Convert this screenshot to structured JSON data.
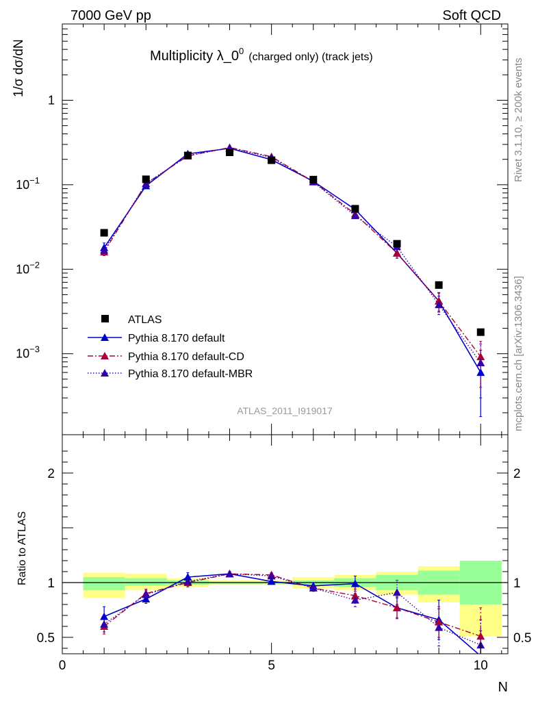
{
  "header": {
    "left": "7000 GeV pp",
    "right": "Soft QCD"
  },
  "side_labels": {
    "rivet": "Rivet 3.1.10, ≥ 200k events",
    "source": "mcplots.cern.ch [arXiv:1306.3436]"
  },
  "colors": {
    "atlas": "#000000",
    "default": "#0000cc",
    "cd": "#aa0033",
    "mbr": "#3300aa",
    "band_inner": "#99ff99",
    "band_outer": "#ffff88"
  },
  "chart_data": [
    {
      "type": "scatter",
      "title": "Multiplicity λ_0",
      "title_sup": "0",
      "title_suffix": "(charged only) (track jets)",
      "ylabel": "1/σ dσ/dN",
      "yscale": "log",
      "ylim": [
        0.00011,
        8
      ],
      "xlim": [
        0,
        10.65
      ],
      "ytick_labels": [
        {
          "value": 1,
          "base": "1",
          "exp": ""
        },
        {
          "value": 0.1,
          "base": "10",
          "exp": "−1"
        },
        {
          "value": 0.01,
          "base": "10",
          "exp": "−2"
        },
        {
          "value": 0.001,
          "base": "10",
          "exp": "−3"
        }
      ],
      "watermark": "ATLAS_2011_I919017",
      "legend_position": "center-left",
      "x": [
        1,
        2,
        3,
        4,
        5,
        6,
        7,
        8,
        9,
        10
      ],
      "series": [
        {
          "name": "ATLAS",
          "style": "square",
          "values": [
            0.027,
            0.116,
            0.222,
            0.242,
            0.195,
            0.115,
            0.052,
            0.02,
            0.0065,
            0.0018
          ]
        },
        {
          "name": "Pythia 8.170 default",
          "style": "solid",
          "values": [
            0.018,
            0.097,
            0.232,
            0.27,
            0.198,
            0.11,
            0.051,
            0.0155,
            0.0042,
            0.0006
          ],
          "err_lo": [
            0.016,
            0.092,
            0.224,
            0.264,
            0.194,
            0.107,
            0.047,
            0.0135,
            0.0031,
            0.00018
          ],
          "err_hi": [
            0.0205,
            0.102,
            0.24,
            0.276,
            0.202,
            0.113,
            0.055,
            0.0175,
            0.0053,
            0.0011
          ]
        },
        {
          "name": "Pythia 8.170 default-CD",
          "style": "dashdot",
          "values": [
            0.016,
            0.103,
            0.219,
            0.276,
            0.215,
            0.109,
            0.045,
            0.0155,
            0.0042,
            0.00092
          ],
          "err_lo": [
            0.0145,
            0.099,
            0.213,
            0.27,
            0.21,
            0.106,
            0.042,
            0.0135,
            0.0032,
            0.0004
          ],
          "err_hi": [
            0.0175,
            0.107,
            0.225,
            0.282,
            0.22,
            0.112,
            0.048,
            0.0175,
            0.0052,
            0.0014
          ]
        },
        {
          "name": "Pythia 8.170 default-MBR",
          "style": "dotted",
          "values": [
            0.0168,
            0.103,
            0.222,
            0.273,
            0.21,
            0.108,
            0.043,
            0.0185,
            0.0038,
            0.00078
          ],
          "err_lo": [
            0.015,
            0.099,
            0.216,
            0.267,
            0.205,
            0.105,
            0.04,
            0.0155,
            0.0029,
            0.0003
          ],
          "err_hi": [
            0.0185,
            0.107,
            0.228,
            0.279,
            0.215,
            0.111,
            0.046,
            0.0215,
            0.0048,
            0.0013
          ]
        }
      ]
    },
    {
      "type": "line",
      "ylabel": "Ratio to ATLAS",
      "xlabel": "N",
      "ylim": [
        0.35,
        2.35
      ],
      "xlim": [
        0,
        10.65
      ],
      "ytick_labels": [
        "0.5",
        "1",
        "2"
      ],
      "xtick_labels": [
        "0",
        "5",
        "10"
      ],
      "x": [
        1,
        2,
        3,
        4,
        5,
        6,
        7,
        8,
        9,
        10
      ],
      "band_inner": {
        "lo": [
          0.93,
          0.97,
          0.98,
          0.99,
          0.99,
          0.98,
          0.96,
          0.93,
          0.89,
          0.8
        ],
        "hi": [
          1.05,
          1.04,
          1.02,
          1.01,
          1.01,
          1.02,
          1.04,
          1.07,
          1.11,
          1.2
        ]
      },
      "band_outer": {
        "lo": [
          0.86,
          0.93,
          0.96,
          0.98,
          0.98,
          0.95,
          0.93,
          0.89,
          0.82,
          0.51
        ],
        "hi": [
          1.09,
          1.08,
          1.04,
          1.02,
          1.02,
          1.05,
          1.07,
          1.1,
          1.15,
          1.2
        ]
      },
      "series": [
        {
          "name": "Pythia 8.170 default",
          "values": [
            0.69,
            0.85,
            1.05,
            1.08,
            1.01,
            0.97,
            0.99,
            0.77,
            0.66,
            0.33
          ],
          "err_lo": [
            0.6,
            0.81,
            1.01,
            1.06,
            0.99,
            0.94,
            0.92,
            0.67,
            0.48,
            0.1
          ],
          "err_hi": [
            0.78,
            0.89,
            1.09,
            1.1,
            1.03,
            1.0,
            1.06,
            0.87,
            0.84,
            0.56
          ]
        },
        {
          "name": "Pythia 8.170 default-CD",
          "values": [
            0.6,
            0.9,
            1.0,
            1.08,
            1.07,
            0.95,
            0.88,
            0.77,
            0.64,
            0.51
          ],
          "err_lo": [
            0.53,
            0.86,
            0.96,
            1.06,
            1.05,
            0.92,
            0.82,
            0.68,
            0.5,
            0.25
          ],
          "err_hi": [
            0.67,
            0.94,
            1.04,
            1.1,
            1.09,
            0.98,
            0.94,
            0.86,
            0.78,
            0.77
          ]
        },
        {
          "name": "Pythia 8.170 default-MBR",
          "values": [
            0.62,
            0.89,
            1.01,
            1.08,
            1.06,
            0.95,
            0.84,
            0.91,
            0.59,
            0.43
          ],
          "err_lo": [
            0.55,
            0.85,
            0.97,
            1.06,
            1.04,
            0.92,
            0.78,
            0.8,
            0.42,
            0.2
          ],
          "err_hi": [
            0.69,
            0.93,
            1.05,
            1.1,
            1.08,
            0.98,
            0.9,
            1.02,
            0.76,
            0.66
          ]
        }
      ]
    }
  ]
}
